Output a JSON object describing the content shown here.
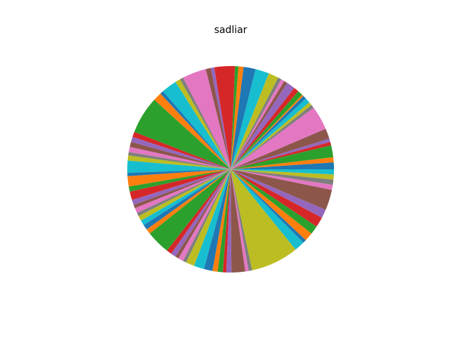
{
  "chart_data": {
    "type": "pie",
    "title": "sadliar",
    "values": [
      4,
      3,
      7,
      2,
      2,
      6,
      14,
      2,
      2,
      3,
      2,
      1,
      3,
      3,
      5,
      2,
      2,
      2,
      6,
      8,
      7,
      3,
      2,
      12,
      2,
      3,
      14,
      2,
      3,
      9,
      2,
      5,
      22,
      3,
      3,
      3,
      3,
      2,
      3,
      7,
      2,
      6,
      3,
      5,
      3,
      2,
      3,
      2,
      3,
      3,
      3,
      3,
      14,
      3,
      3,
      2,
      3,
      2,
      5,
      6,
      5,
      3,
      3,
      2,
      3,
      8,
      2,
      2,
      28,
      6,
      2,
      5,
      5,
      6,
      5,
      12,
      3,
      3,
      3,
      3
    ],
    "colors": [
      "#1f77b4",
      "#ff7f0e",
      "#2ca02c",
      "#d62728",
      "#9467bd",
      "#8c564b",
      "#e377c2",
      "#7f7f7f",
      "#bcbd22",
      "#17becf"
    ],
    "start_angle": 0,
    "counterclockwise": true
  }
}
